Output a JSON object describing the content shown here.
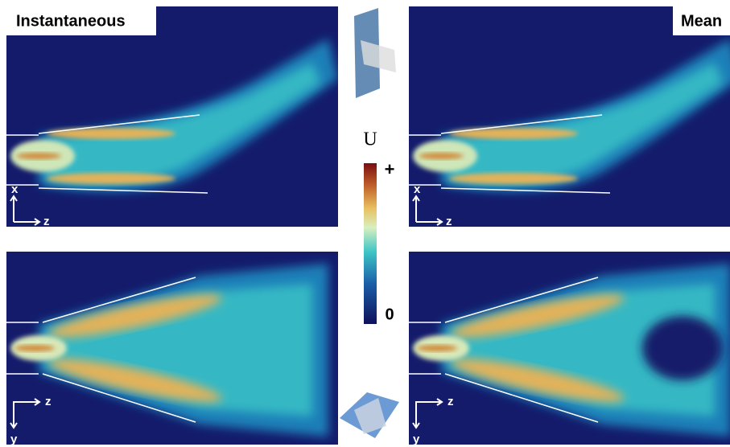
{
  "panels": [
    {
      "label": "Instantaneous",
      "axes": {
        "vertical": "x",
        "horizontal": "z"
      }
    },
    {
      "label": "Mean",
      "axes": {
        "vertical": "x",
        "horizontal": "z"
      }
    },
    {
      "axes": {
        "horizontal": "z",
        "vertical": "y"
      }
    },
    {
      "axes": {
        "horizontal": "z",
        "vertical": "y"
      }
    }
  ],
  "colorbar": {
    "title": "U",
    "max_label": "+",
    "min_label": "0"
  }
}
